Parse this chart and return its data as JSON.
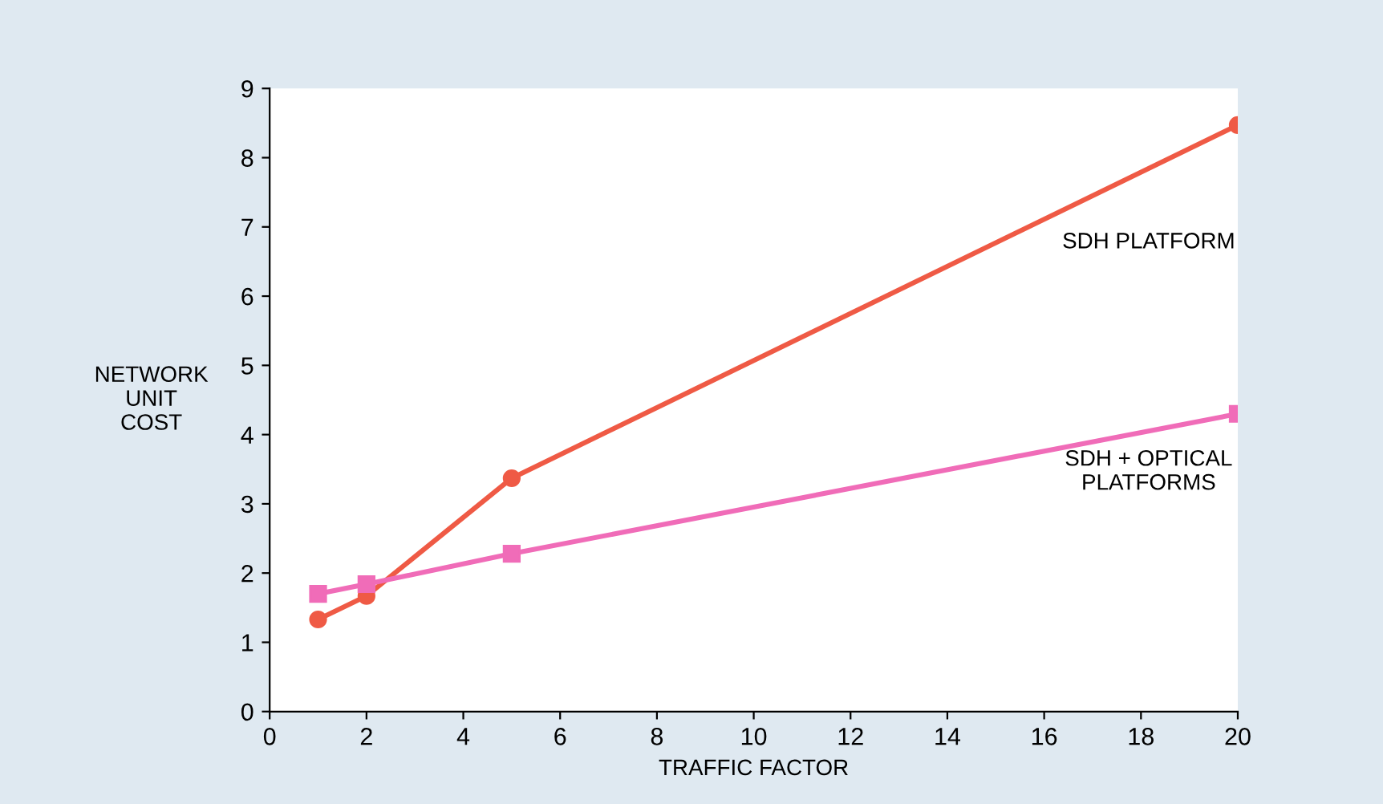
{
  "chart_data": {
    "type": "line",
    "xlabel": "TRAFFIC FACTOR",
    "ylabel": "NETWORK\nUNIT\nCOST",
    "xlim": [
      0,
      20
    ],
    "xticks": [
      0,
      2,
      4,
      6,
      8,
      10,
      12,
      14,
      16,
      18,
      20
    ],
    "ylim": [
      0,
      9
    ],
    "yticks": [
      0,
      1,
      2,
      3,
      4,
      5,
      6,
      7,
      8,
      9
    ],
    "grid": false,
    "legend": false,
    "series": [
      {
        "name": "SDH PLATFORM",
        "color": "#ef5a45",
        "marker": "circle",
        "x": [
          1,
          2,
          5,
          20
        ],
        "values": [
          1.33,
          1.67,
          3.37,
          8.47
        ]
      },
      {
        "name": "SDH + OPTICAL\nPLATFORMS",
        "color": "#f06cb8",
        "marker": "square",
        "x": [
          1,
          2,
          5,
          20
        ],
        "values": [
          1.7,
          1.84,
          2.28,
          4.3
        ]
      }
    ]
  }
}
